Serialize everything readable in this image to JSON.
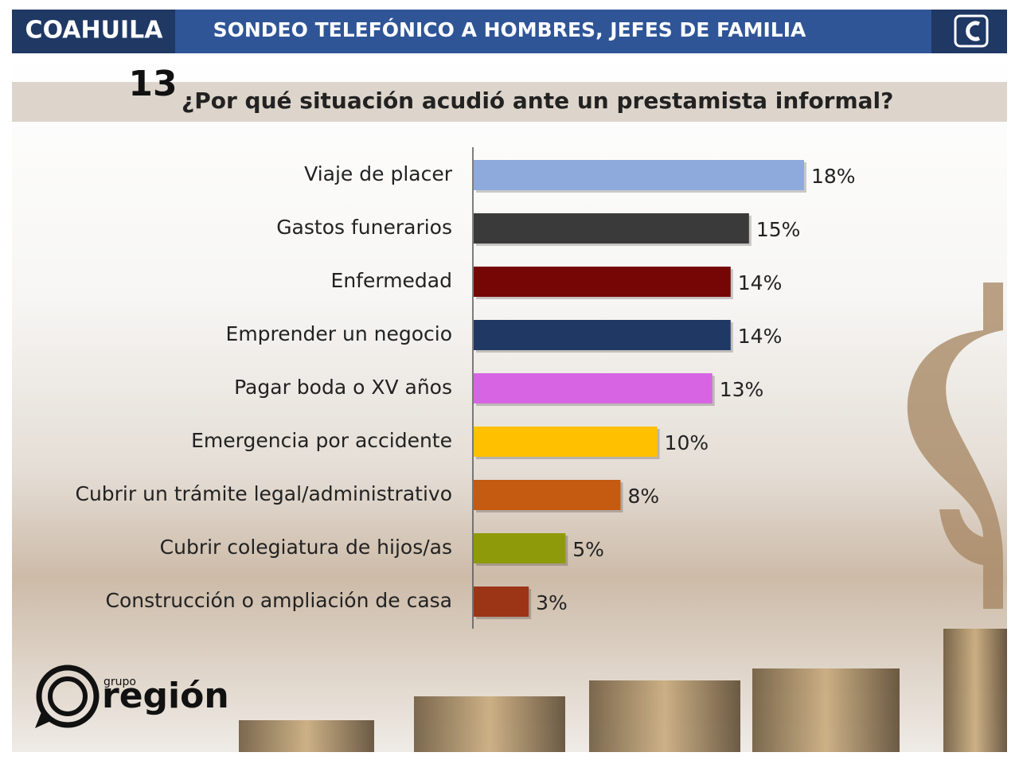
{
  "header": {
    "region": "COAHUILA",
    "title": "SONDEO TELEFÓNICO A HOMBRES, JEFES DE FAMILIA"
  },
  "chart_data": {
    "type": "bar",
    "orientation": "horizontal",
    "question_number": "13",
    "title": "¿Por qué situación acudió ante un prestamista informal?",
    "categories": [
      "Viaje de placer",
      "Gastos funerarios",
      "Enfermedad",
      "Emprender un negocio",
      "Pagar boda o XV años",
      "Emergencia por accidente",
      "Cubrir un trámite legal/administrativo",
      "Cubrir colegiatura de hijos/as",
      "Construcción o ampliación de casa"
    ],
    "values": [
      18,
      15,
      14,
      14,
      13,
      10,
      8,
      5,
      3
    ],
    "value_labels": [
      "18%",
      "15%",
      "14%",
      "14%",
      "13%",
      "10%",
      "8%",
      "5%",
      "3%"
    ],
    "colors": [
      "#8eaadc",
      "#3a3a3a",
      "#760606",
      "#1f3864",
      "#d765e3",
      "#ffc000",
      "#c55a11",
      "#8f9a0a",
      "#9c3416"
    ]
  },
  "logo": {
    "prefix": "grupo",
    "name": "región"
  }
}
